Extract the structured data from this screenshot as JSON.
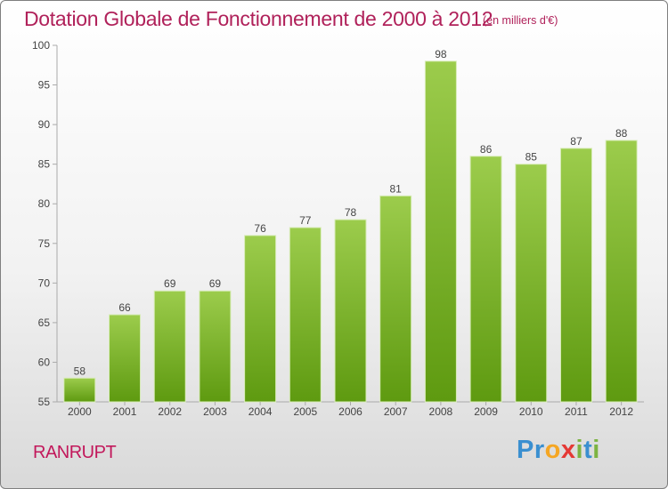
{
  "title": "Dotation Globale de Fonctionnement de 2000 à 2012",
  "unit_note": "(en milliers d'€)",
  "commune": "RANRUPT",
  "logo": {
    "letters": [
      "P",
      "r",
      "o",
      "x",
      "i",
      "t",
      "i"
    ],
    "colors": [
      "#3a8fd0",
      "#3a8fd0",
      "#f5a623",
      "#e53935",
      "#7cb342",
      "#3a8fd0",
      "#7cb342"
    ]
  },
  "colors": {
    "bar_top": "#9ccc4c",
    "bar_bottom": "#5e9a10",
    "title": "#b0215a",
    "commune": "#c2185b"
  },
  "chart_data": {
    "type": "bar",
    "categories": [
      "2000",
      "2001",
      "2002",
      "2003",
      "2004",
      "2005",
      "2006",
      "2007",
      "2008",
      "2009",
      "2010",
      "2011",
      "2012"
    ],
    "values": [
      58,
      66,
      69,
      69,
      76,
      77,
      78,
      81,
      98,
      86,
      85,
      87,
      88
    ],
    "ylim": [
      55,
      100
    ],
    "yticks": [
      55,
      60,
      65,
      70,
      75,
      80,
      85,
      90,
      95,
      100
    ],
    "grid": false
  }
}
